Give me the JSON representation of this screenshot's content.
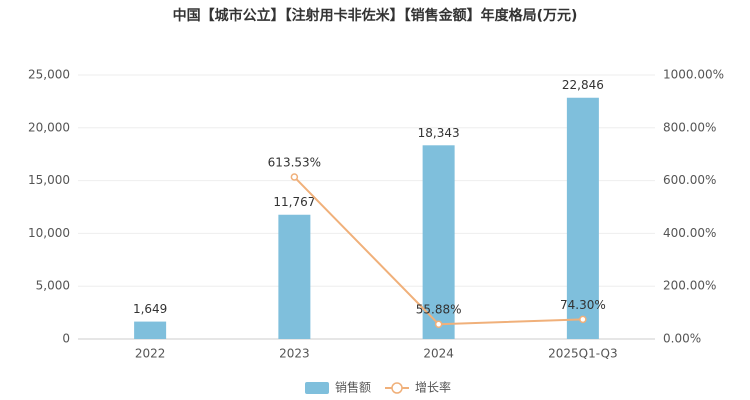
{
  "chart_data": {
    "type": "bar",
    "title": "中国【城市公立】【注射用卡非佐米】【销售金额】年度格局(万元)",
    "categories": [
      "2022",
      "2023",
      "2024",
      "2025Q1-Q3"
    ],
    "series": [
      {
        "name": "销售额",
        "type": "bar",
        "color": "#7fbfdc",
        "values": [
          1649,
          11767,
          18343,
          22846
        ],
        "value_labels": [
          "1,649",
          "11,767",
          "18,343",
          "22,846"
        ]
      },
      {
        "name": "增长率",
        "type": "line",
        "axis": "y2",
        "color": "#f0b07a",
        "values": [
          null,
          613.53,
          55.88,
          74.3
        ],
        "value_labels": [
          null,
          "613.53%",
          "55.88%",
          "74.30%"
        ]
      }
    ],
    "ylim": [
      0,
      25000
    ],
    "yticks": [
      0,
      {
        "value": 5000,
        "label": "5,000"
      },
      {
        "value": 10000,
        "label": "10,000"
      },
      {
        "value": 15000,
        "label": "15,000"
      },
      {
        "value": 20000,
        "label": "20,000"
      },
      {
        "value": 25000,
        "label": "25,000"
      }
    ],
    "y2lim": [
      0,
      1000
    ],
    "y2ticks": [
      {
        "value": 0,
        "label": "0.00%"
      },
      {
        "value": 200,
        "label": "200.00%"
      },
      {
        "value": 400,
        "label": "400.00%"
      },
      {
        "value": 600,
        "label": "600.00%"
      },
      {
        "value": 800,
        "label": "800.00%"
      },
      {
        "value": 1000,
        "label": "1000.00%"
      }
    ],
    "grid": true,
    "legend": "bottom"
  }
}
